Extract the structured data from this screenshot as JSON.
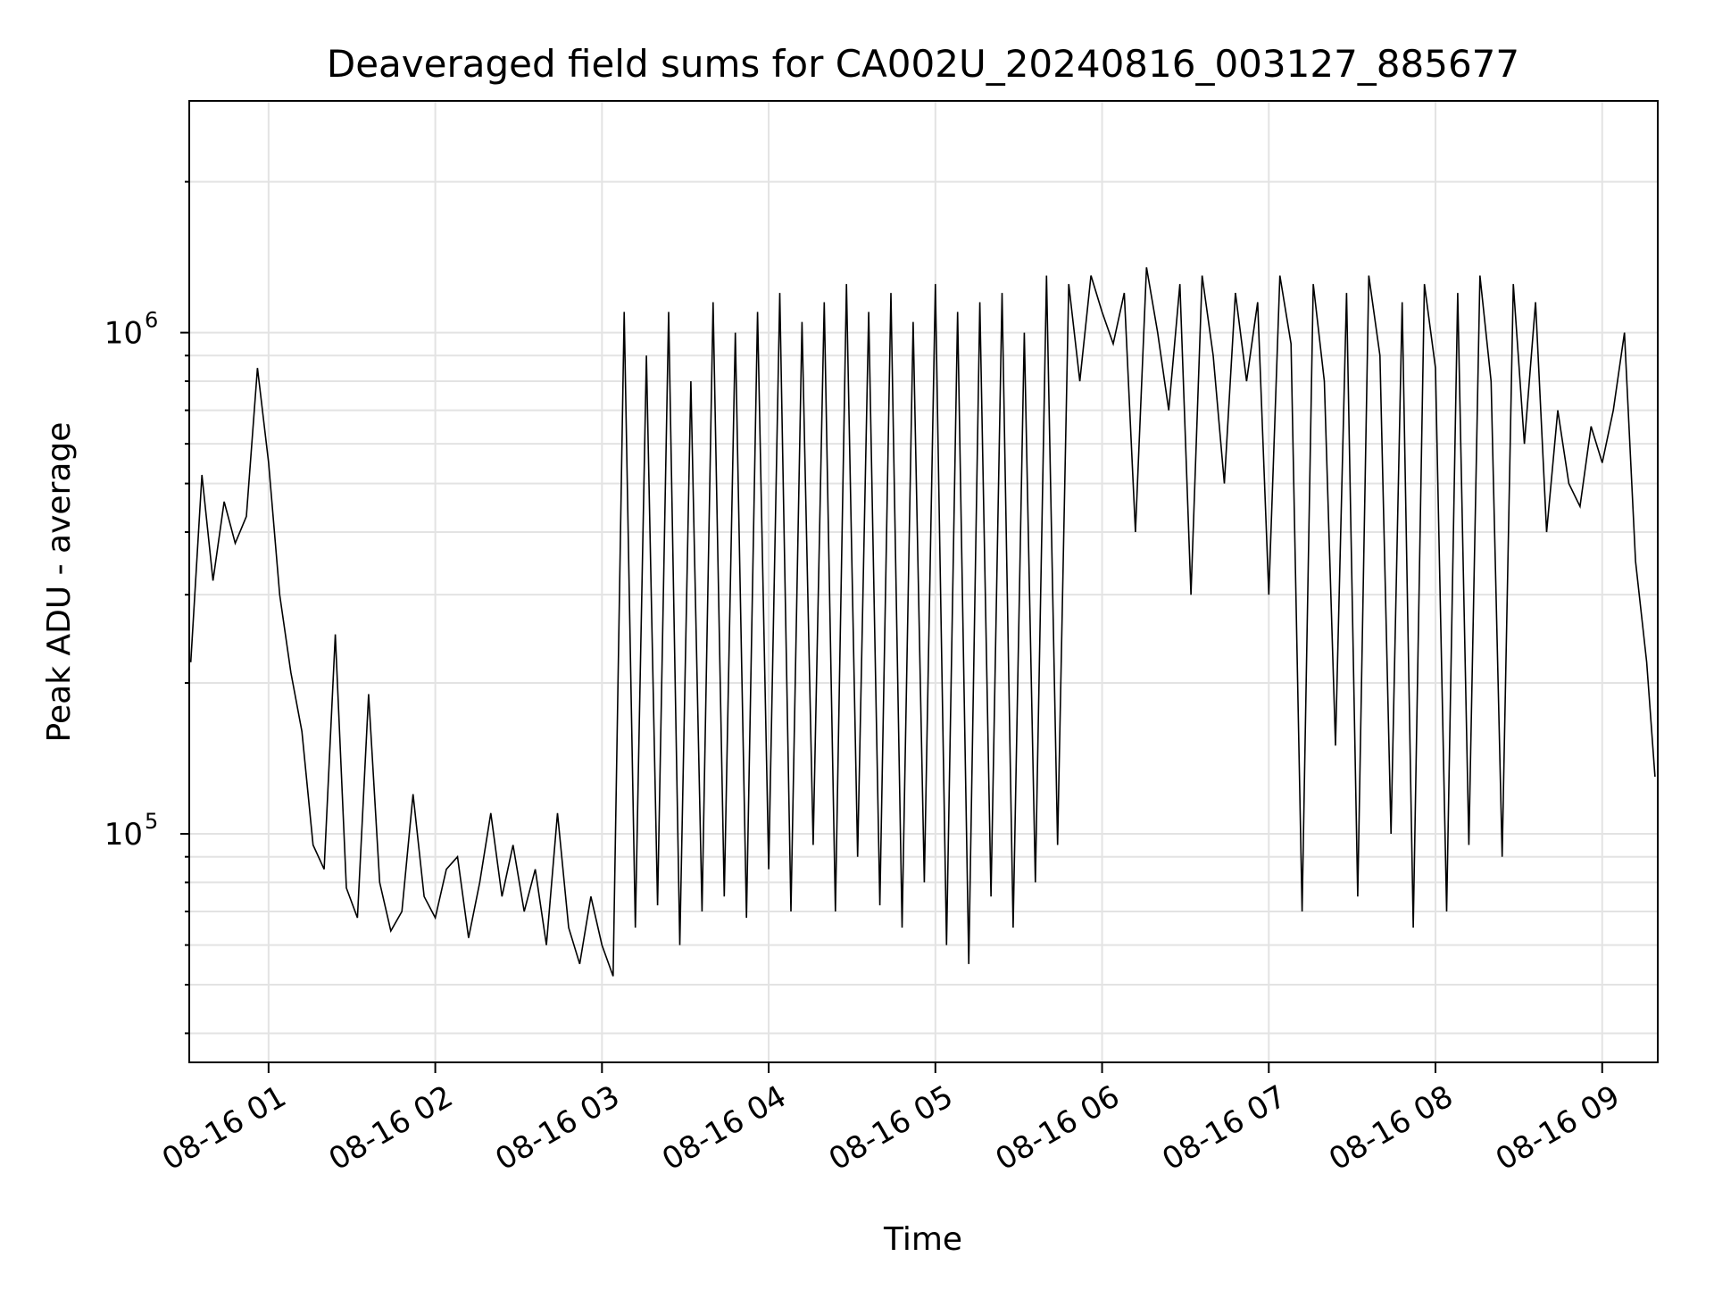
{
  "chart_data": {
    "type": "line",
    "title": "Deaveraged field sums for CA002U_20240816_003127_885677",
    "xlabel": "Time",
    "ylabel": "Peak ADU - average",
    "y_scale": "log",
    "xlim": [
      "2024-08-16 00:31:27",
      "2024-08-16 09:20:00"
    ],
    "ylim": [
      35000,
      2900000
    ],
    "grid": true,
    "legend": "none",
    "x_ticks": [
      {
        "value": "2024-08-16 01:00",
        "label": "08-16 01"
      },
      {
        "value": "2024-08-16 02:00",
        "label": "08-16 02"
      },
      {
        "value": "2024-08-16 03:00",
        "label": "08-16 03"
      },
      {
        "value": "2024-08-16 04:00",
        "label": "08-16 04"
      },
      {
        "value": "2024-08-16 05:00",
        "label": "08-16 05"
      },
      {
        "value": "2024-08-16 06:00",
        "label": "08-16 06"
      },
      {
        "value": "2024-08-16 07:00",
        "label": "08-16 07"
      },
      {
        "value": "2024-08-16 08:00",
        "label": "08-16 08"
      },
      {
        "value": "2024-08-16 09:00",
        "label": "08-16 09"
      }
    ],
    "y_ticks": [
      {
        "value": 100000,
        "base": "10",
        "exp": "5"
      },
      {
        "value": 1000000,
        "base": "10",
        "exp": "6"
      }
    ],
    "line_color": "#000000",
    "series": [
      {
        "x": [
          "2024-08-16 00:32",
          "2024-08-16 00:36",
          "2024-08-16 00:40",
          "2024-08-16 00:44",
          "2024-08-16 00:48",
          "2024-08-16 00:52",
          "2024-08-16 00:56",
          "2024-08-16 01:00",
          "2024-08-16 01:04",
          "2024-08-16 01:08",
          "2024-08-16 01:12",
          "2024-08-16 01:16",
          "2024-08-16 01:20",
          "2024-08-16 01:24",
          "2024-08-16 01:28",
          "2024-08-16 01:32",
          "2024-08-16 01:36",
          "2024-08-16 01:40",
          "2024-08-16 01:44",
          "2024-08-16 01:48",
          "2024-08-16 01:52",
          "2024-08-16 01:56",
          "2024-08-16 02:00",
          "2024-08-16 02:04",
          "2024-08-16 02:08",
          "2024-08-16 02:12",
          "2024-08-16 02:16",
          "2024-08-16 02:20",
          "2024-08-16 02:24",
          "2024-08-16 02:28",
          "2024-08-16 02:32",
          "2024-08-16 02:36",
          "2024-08-16 02:40",
          "2024-08-16 02:44",
          "2024-08-16 02:48",
          "2024-08-16 02:52",
          "2024-08-16 02:56",
          "2024-08-16 03:00",
          "2024-08-16 03:04",
          "2024-08-16 03:08",
          "2024-08-16 03:12",
          "2024-08-16 03:16",
          "2024-08-16 03:20",
          "2024-08-16 03:24",
          "2024-08-16 03:28",
          "2024-08-16 03:32",
          "2024-08-16 03:36",
          "2024-08-16 03:40",
          "2024-08-16 03:44",
          "2024-08-16 03:48",
          "2024-08-16 03:52",
          "2024-08-16 03:56",
          "2024-08-16 04:00",
          "2024-08-16 04:04",
          "2024-08-16 04:08",
          "2024-08-16 04:12",
          "2024-08-16 04:16",
          "2024-08-16 04:20",
          "2024-08-16 04:24",
          "2024-08-16 04:28",
          "2024-08-16 04:32",
          "2024-08-16 04:36",
          "2024-08-16 04:40",
          "2024-08-16 04:44",
          "2024-08-16 04:48",
          "2024-08-16 04:52",
          "2024-08-16 04:56",
          "2024-08-16 05:00",
          "2024-08-16 05:04",
          "2024-08-16 05:08",
          "2024-08-16 05:12",
          "2024-08-16 05:16",
          "2024-08-16 05:20",
          "2024-08-16 05:24",
          "2024-08-16 05:28",
          "2024-08-16 05:32",
          "2024-08-16 05:36",
          "2024-08-16 05:40",
          "2024-08-16 05:44",
          "2024-08-16 05:48",
          "2024-08-16 05:52",
          "2024-08-16 05:56",
          "2024-08-16 06:00",
          "2024-08-16 06:04",
          "2024-08-16 06:08",
          "2024-08-16 06:12",
          "2024-08-16 06:16",
          "2024-08-16 06:20",
          "2024-08-16 06:24",
          "2024-08-16 06:28",
          "2024-08-16 06:32",
          "2024-08-16 06:36",
          "2024-08-16 06:40",
          "2024-08-16 06:44",
          "2024-08-16 06:48",
          "2024-08-16 06:52",
          "2024-08-16 06:56",
          "2024-08-16 07:00",
          "2024-08-16 07:04",
          "2024-08-16 07:08",
          "2024-08-16 07:12",
          "2024-08-16 07:16",
          "2024-08-16 07:20",
          "2024-08-16 07:24",
          "2024-08-16 07:28",
          "2024-08-16 07:32",
          "2024-08-16 07:36",
          "2024-08-16 07:40",
          "2024-08-16 07:44",
          "2024-08-16 07:48",
          "2024-08-16 07:52",
          "2024-08-16 07:56",
          "2024-08-16 08:00",
          "2024-08-16 08:04",
          "2024-08-16 08:08",
          "2024-08-16 08:12",
          "2024-08-16 08:16",
          "2024-08-16 08:20",
          "2024-08-16 08:24",
          "2024-08-16 08:28",
          "2024-08-16 08:32",
          "2024-08-16 08:36",
          "2024-08-16 08:40",
          "2024-08-16 08:44",
          "2024-08-16 08:48",
          "2024-08-16 08:52",
          "2024-08-16 08:56",
          "2024-08-16 09:00",
          "2024-08-16 09:04",
          "2024-08-16 09:08",
          "2024-08-16 09:12",
          "2024-08-16 09:16",
          "2024-08-16 09:19"
        ],
        "y": [
          220000,
          520000,
          320000,
          460000,
          380000,
          430000,
          850000,
          550000,
          300000,
          210000,
          160000,
          95000,
          85000,
          250000,
          78000,
          68000,
          190000,
          80000,
          64000,
          70000,
          120000,
          75000,
          68000,
          85000,
          90000,
          62000,
          80000,
          110000,
          75000,
          95000,
          70000,
          85000,
          60000,
          110000,
          65000,
          55000,
          75000,
          60000,
          52000,
          1100000,
          65000,
          900000,
          72000,
          1100000,
          60000,
          800000,
          70000,
          1150000,
          75000,
          1000000,
          68000,
          1100000,
          85000,
          1200000,
          70000,
          1050000,
          95000,
          1150000,
          70000,
          1250000,
          90000,
          1100000,
          72000,
          1200000,
          65000,
          1050000,
          80000,
          1250000,
          60000,
          1100000,
          55000,
          1150000,
          75000,
          1200000,
          65000,
          1000000,
          80000,
          1300000,
          95000,
          1250000,
          800000,
          1300000,
          1100000,
          950000,
          1200000,
          400000,
          1350000,
          1000000,
          700000,
          1250000,
          300000,
          1300000,
          900000,
          500000,
          1200000,
          800000,
          1150000,
          300000,
          1300000,
          950000,
          70000,
          1250000,
          800000,
          150000,
          1200000,
          75000,
          1300000,
          900000,
          100000,
          1150000,
          65000,
          1250000,
          850000,
          70000,
          1200000,
          95000,
          1300000,
          800000,
          90000,
          1250000,
          600000,
          1150000,
          400000,
          700000,
          500000,
          450000,
          650000,
          550000,
          700000,
          1000000,
          350000,
          220000,
          130000
        ]
      }
    ]
  }
}
